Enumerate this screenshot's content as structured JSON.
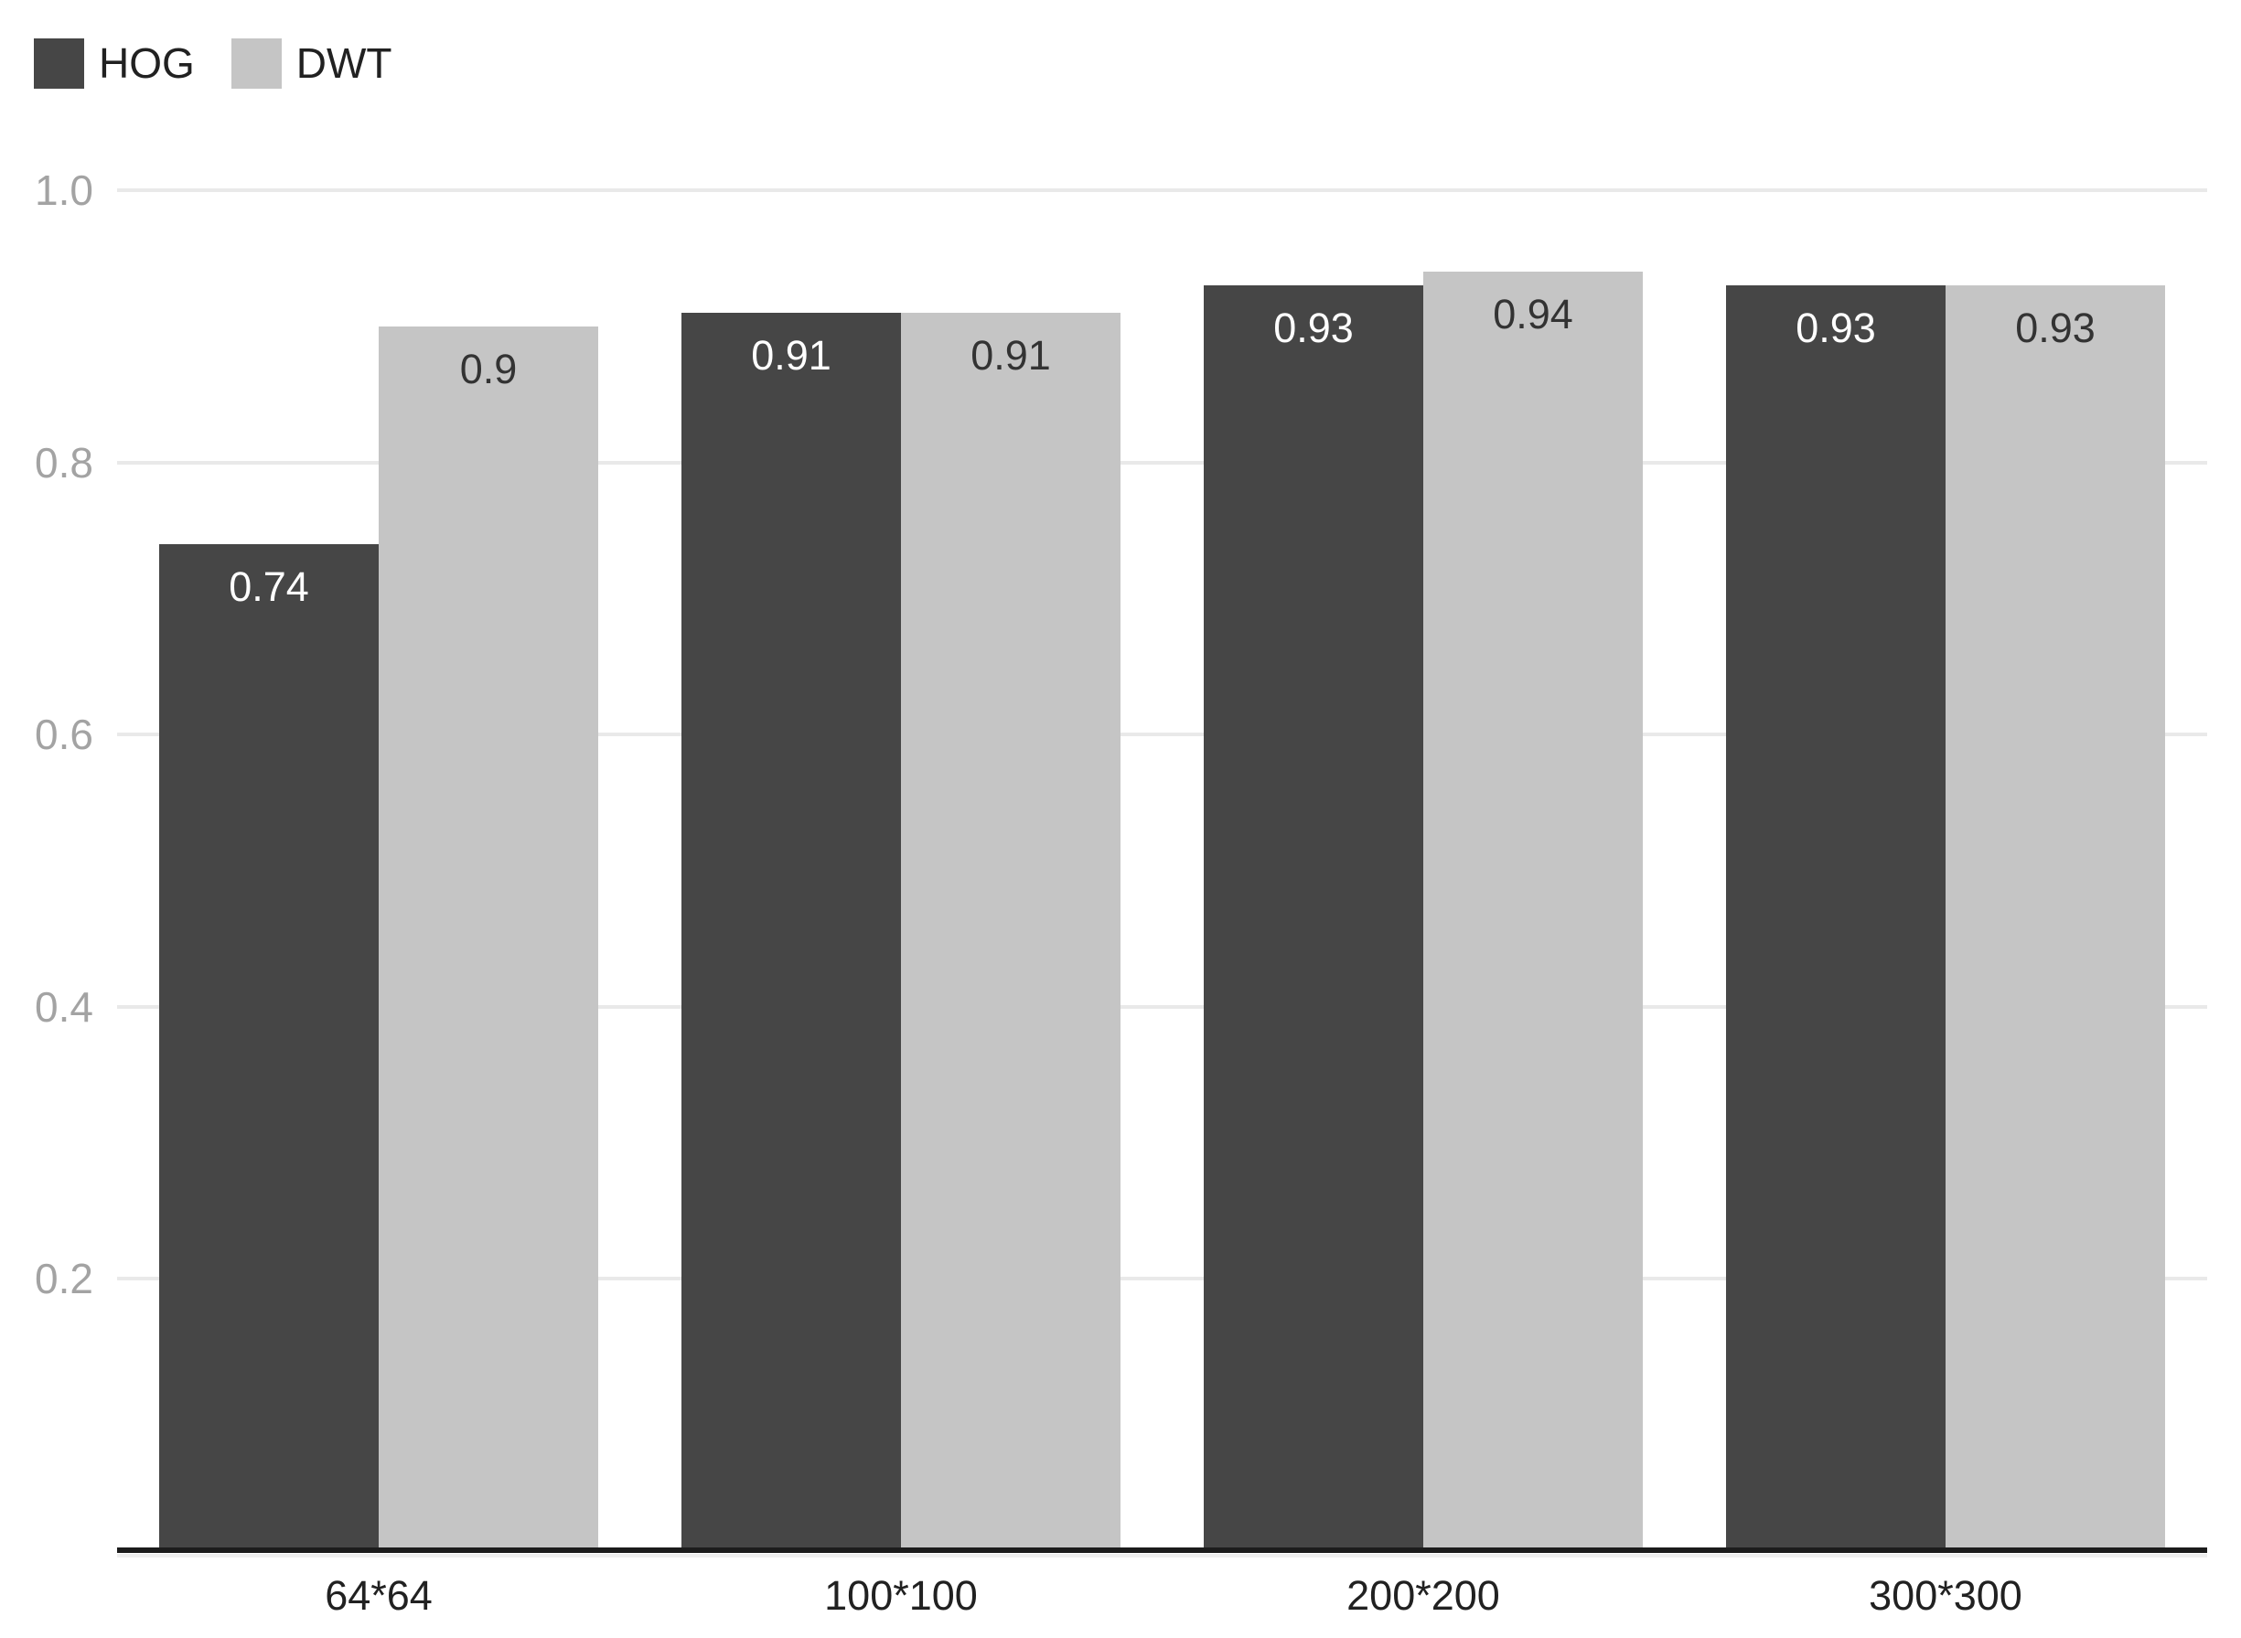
{
  "chart_data": {
    "type": "bar",
    "title": "",
    "xlabel": "",
    "ylabel": "",
    "categories": [
      "64*64",
      "100*100",
      "200*200",
      "300*300"
    ],
    "series": [
      {
        "name": "HOG",
        "color": "#464646",
        "label_color": "#ffffff",
        "values": [
          0.74,
          0.91,
          0.93,
          0.93
        ],
        "labels": [
          "0.74",
          "0.91",
          "0.93",
          "0.93"
        ]
      },
      {
        "name": "DWT",
        "color": "#c5c5c5",
        "label_color": "#333333",
        "values": [
          0.9,
          0.91,
          0.94,
          0.93
        ],
        "labels": [
          "0.9",
          "0.91",
          "0.94",
          "0.93"
        ]
      }
    ],
    "ylim": [
      0,
      1.0
    ],
    "yticks": [
      0.2,
      0.4,
      0.6,
      0.8,
      1.0
    ],
    "ytick_labels": [
      "0.2",
      "0.4",
      "0.6",
      "0.8",
      "1.0"
    ],
    "grid": "horizontal",
    "gridline_color": "#e9e9e9",
    "axis_line_color": "#1c1c1c",
    "ytick_label_color": "#a3a3a3",
    "xtick_label_color": "#212121",
    "legend_position": "top-left",
    "background_color": "#ffffff"
  }
}
